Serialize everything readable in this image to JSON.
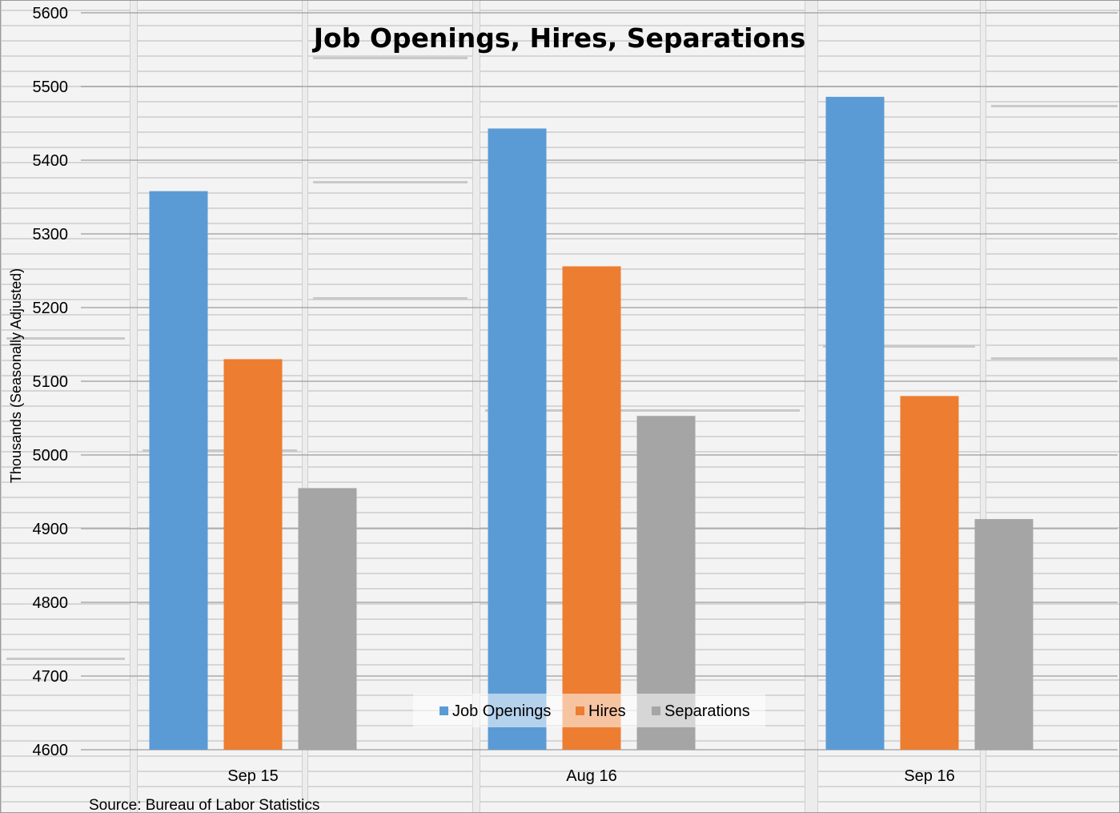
{
  "chart_data": {
    "type": "bar",
    "title": "Job Openings, Hires, Separations",
    "xlabel": "",
    "ylabel": "Thousands (Seasonally Adjusted)",
    "ylim": [
      4600,
      5600
    ],
    "yticks": [
      4600,
      4700,
      4800,
      4900,
      5000,
      5100,
      5200,
      5300,
      5400,
      5500,
      5600
    ],
    "categories": [
      "Sep 15",
      "Aug 16",
      "Sep 16"
    ],
    "series": [
      {
        "name": "Job Openings",
        "color": "#5b9bd5",
        "values": [
          5358,
          5443,
          5486
        ]
      },
      {
        "name": "Hires",
        "color": "#ed7d31",
        "values": [
          5130,
          5256,
          5080
        ]
      },
      {
        "name": "Separations",
        "color": "#a5a5a5",
        "values": [
          4955,
          5053,
          4913
        ]
      }
    ],
    "grid": true,
    "legend": "bottom-center",
    "source": "Source: Bureau of Labor Statistics"
  }
}
